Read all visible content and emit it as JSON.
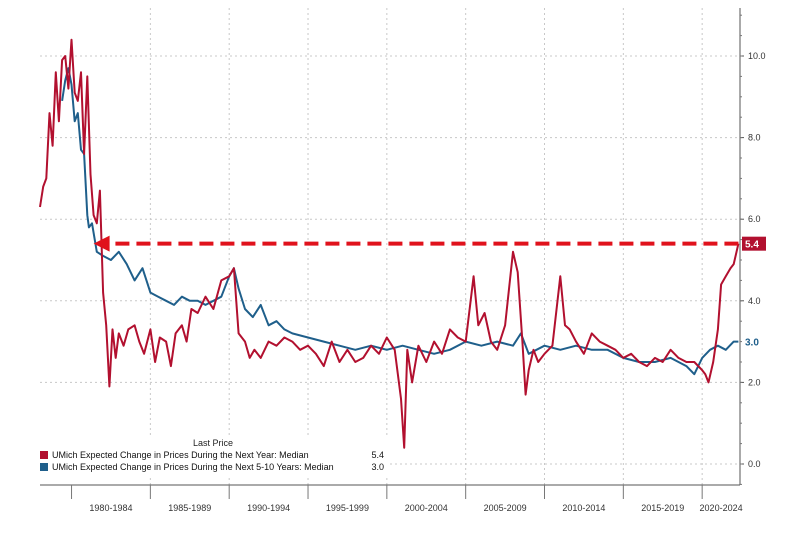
{
  "chart_data": {
    "type": "line",
    "title": "",
    "xlabel": "",
    "ylabel": "",
    "ylim": [
      -0.5,
      11.5
    ],
    "y_ticks": [
      "10.0",
      "8.0",
      "6.0",
      "4.0",
      "2.0",
      "0.0"
    ],
    "x_range": [
      1978.0,
      2022.4
    ],
    "x_period_labels": [
      "1980-1984",
      "1985-1989",
      "1990-1994",
      "1995-1999",
      "2000-2004",
      "2005-2009",
      "2010-2014",
      "2015-2019",
      "2020-2024"
    ],
    "grid": true,
    "legend_header": "Last Price",
    "legend_position": "bottom-left",
    "annotation": {
      "type": "dashed-arrow",
      "y": 5.4,
      "x_from": 2022.3,
      "x_to": 1981.4
    },
    "series": [
      {
        "name": "UMich Expected Change in Prices During the Next Year: Median",
        "last_price": "5.4",
        "color": "#b2102f",
        "x": [
          1978.0,
          1978.2,
          1978.4,
          1978.6,
          1978.8,
          1979.0,
          1979.2,
          1979.4,
          1979.6,
          1979.8,
          1980.0,
          1980.2,
          1980.4,
          1980.6,
          1980.8,
          1981.0,
          1981.2,
          1981.4,
          1981.6,
          1981.8,
          1982.0,
          1982.2,
          1982.4,
          1982.6,
          1982.8,
          1983.0,
          1983.3,
          1983.6,
          1984.0,
          1984.3,
          1984.6,
          1985.0,
          1985.3,
          1985.6,
          1986.0,
          1986.3,
          1986.6,
          1987.0,
          1987.3,
          1987.6,
          1988.0,
          1988.5,
          1989.0,
          1989.5,
          1990.0,
          1990.3,
          1990.6,
          1991.0,
          1991.3,
          1991.6,
          1992.0,
          1992.5,
          1993.0,
          1993.5,
          1994.0,
          1994.5,
          1995.0,
          1995.5,
          1996.0,
          1996.5,
          1997.0,
          1997.5,
          1998.0,
          1998.5,
          1999.0,
          1999.5,
          2000.0,
          2000.5,
          2000.9,
          2001.1,
          2001.3,
          2001.6,
          2002.0,
          2002.5,
          2003.0,
          2003.5,
          2004.0,
          2004.5,
          2005.0,
          2005.5,
          2005.8,
          2006.2,
          2006.6,
          2007.0,
          2007.5,
          2008.0,
          2008.3,
          2008.6,
          2008.8,
          2009.0,
          2009.3,
          2009.6,
          2010.0,
          2010.5,
          2011.0,
          2011.3,
          2011.6,
          2012.0,
          2012.5,
          2013.0,
          2013.5,
          2014.0,
          2014.5,
          2015.0,
          2015.5,
          2016.0,
          2016.5,
          2017.0,
          2017.5,
          2018.0,
          2018.5,
          2019.0,
          2019.5,
          2020.0,
          2020.2,
          2020.4,
          2020.7,
          2021.0,
          2021.2,
          2021.5,
          2021.8,
          2022.0,
          2022.3
        ],
        "values": [
          6.3,
          6.8,
          7.0,
          8.6,
          7.8,
          9.6,
          8.4,
          9.9,
          10.0,
          9.2,
          10.4,
          9.1,
          8.9,
          9.6,
          7.6,
          9.5,
          7.1,
          6.1,
          5.9,
          6.7,
          4.2,
          3.4,
          1.9,
          3.3,
          2.6,
          3.2,
          2.9,
          3.3,
          3.4,
          3.0,
          2.7,
          3.3,
          2.5,
          3.1,
          3.0,
          2.4,
          3.2,
          3.4,
          3.0,
          3.8,
          3.7,
          4.1,
          3.8,
          4.5,
          4.6,
          4.8,
          3.2,
          3.0,
          2.6,
          2.8,
          2.6,
          3.0,
          2.9,
          3.1,
          3.0,
          2.8,
          2.9,
          2.7,
          2.4,
          3.0,
          2.5,
          2.8,
          2.5,
          2.6,
          2.9,
          2.7,
          3.1,
          2.8,
          1.6,
          0.4,
          2.8,
          2.0,
          2.9,
          2.5,
          3.0,
          2.7,
          3.3,
          3.1,
          3.0,
          4.6,
          3.4,
          3.7,
          3.0,
          2.8,
          3.4,
          5.2,
          4.7,
          3.0,
          1.7,
          2.3,
          2.8,
          2.5,
          2.7,
          2.9,
          4.6,
          3.4,
          3.3,
          3.0,
          2.7,
          3.2,
          3.0,
          2.9,
          2.8,
          2.6,
          2.7,
          2.5,
          2.4,
          2.6,
          2.5,
          2.8,
          2.6,
          2.5,
          2.5,
          2.3,
          2.2,
          2.0,
          2.5,
          3.3,
          4.4,
          4.6,
          4.8,
          4.9,
          5.4
        ]
      },
      {
        "name": "UMich Expected Change in Prices During the Next 5-10 Years: Median",
        "last_price": "3.0",
        "color": "#1f5f8b",
        "x": [
          1979.4,
          1979.6,
          1979.8,
          1980.0,
          1980.2,
          1980.4,
          1980.6,
          1980.8,
          1981.0,
          1981.1,
          1981.3,
          1981.6,
          1982.0,
          1982.5,
          1983.0,
          1983.5,
          1984.0,
          1984.5,
          1985.0,
          1985.5,
          1986.0,
          1986.5,
          1987.0,
          1987.5,
          1988.0,
          1988.5,
          1989.0,
          1989.5,
          1990.0,
          1990.3,
          1990.6,
          1991.0,
          1991.5,
          1992.0,
          1992.5,
          1993.0,
          1993.5,
          1994.0,
          1995.0,
          1996.0,
          1997.0,
          1998.0,
          1999.0,
          2000.0,
          2001.0,
          2002.0,
          2003.0,
          2004.0,
          2005.0,
          2006.0,
          2007.0,
          2008.0,
          2008.5,
          2009.0,
          2010.0,
          2011.0,
          2012.0,
          2013.0,
          2014.0,
          2015.0,
          2016.0,
          2017.0,
          2018.0,
          2019.0,
          2019.5,
          2020.0,
          2020.5,
          2021.0,
          2021.5,
          2022.0,
          2022.3
        ],
        "values": [
          8.9,
          9.4,
          9.7,
          9.3,
          8.4,
          8.6,
          7.7,
          7.6,
          6.1,
          5.8,
          5.9,
          5.2,
          5.1,
          5.0,
          5.2,
          4.9,
          4.5,
          4.8,
          4.2,
          4.1,
          4.0,
          3.9,
          4.1,
          4.0,
          4.0,
          3.9,
          4.0,
          4.1,
          4.6,
          4.8,
          4.3,
          3.8,
          3.6,
          3.9,
          3.4,
          3.5,
          3.3,
          3.2,
          3.1,
          3.0,
          2.9,
          2.8,
          2.9,
          2.8,
          2.9,
          2.8,
          2.7,
          2.8,
          3.0,
          2.9,
          3.0,
          2.9,
          3.2,
          2.7,
          2.9,
          2.8,
          2.9,
          2.8,
          2.8,
          2.6,
          2.5,
          2.5,
          2.6,
          2.4,
          2.2,
          2.6,
          2.8,
          2.9,
          2.8,
          3.0,
          3.0
        ]
      }
    ]
  }
}
